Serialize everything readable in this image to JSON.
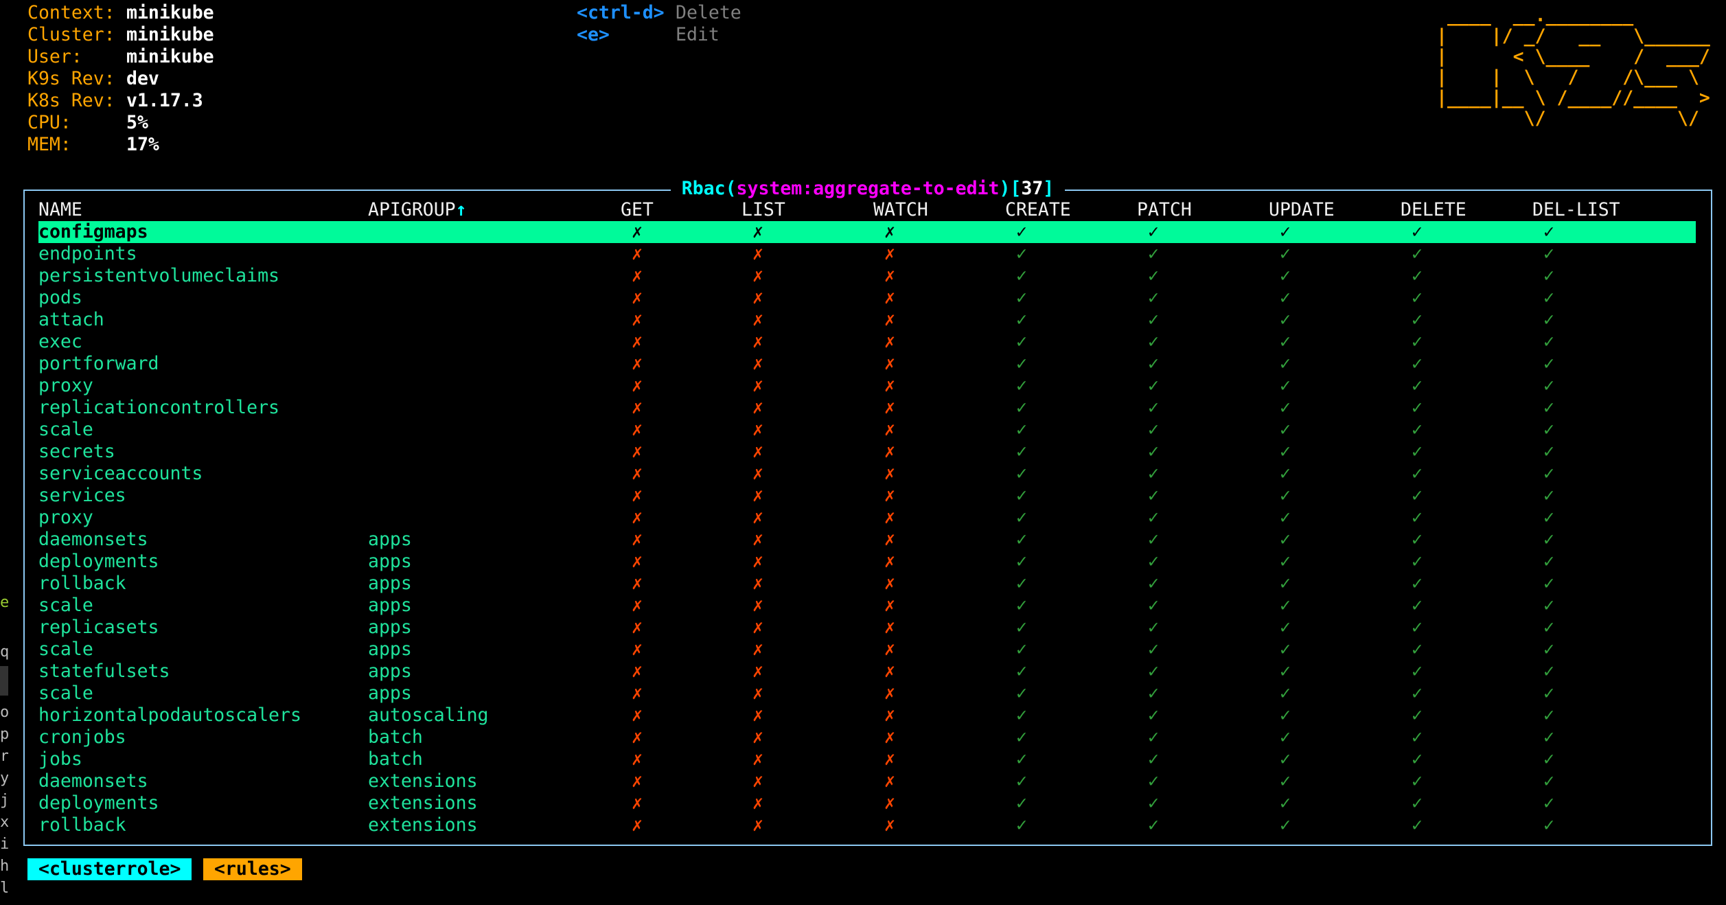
{
  "info": [
    {
      "label": "Context:",
      "value": "minikube"
    },
    {
      "label": "Cluster:",
      "value": "minikube"
    },
    {
      "label": "User:",
      "value": "minikube"
    },
    {
      "label": "K9s Rev:",
      "value": "dev"
    },
    {
      "label": "K8s Rev:",
      "value": "v1.17.3"
    },
    {
      "label": "CPU:",
      "value": "5%"
    },
    {
      "label": "MEM:",
      "value": "17%"
    }
  ],
  "menu": [
    {
      "key": "<ctrl-d>",
      "desc": "Delete"
    },
    {
      "key": "<e>",
      "desc": "Edit"
    }
  ],
  "logo": [
    " ____  __.________       ",
    "|    |/ _/   __   \\______",
    "|      < \\____    /  ___/",
    "|    |  \\   /    /\\___ \\ ",
    "|____|__ \\ /____//____  >",
    "        \\/            \\/ "
  ],
  "table": {
    "title": {
      "kind": "Rbac",
      "open": "(",
      "name": "system:aggregate-to-edit",
      "close": ")",
      "count_open": "[",
      "count": "37",
      "count_close": "]"
    },
    "columns": [
      "NAME",
      "APIGROUP↑",
      "GET",
      "LIST",
      "WATCH",
      "CREATE",
      "PATCH",
      "UPDATE",
      "DELETE",
      "DEL-LIST"
    ],
    "marks": {
      "deny": "✗",
      "allow": "✓"
    },
    "selected_index": 0,
    "rows": [
      {
        "name": "configmaps",
        "apigroup": "",
        "perms": [
          0,
          0,
          0,
          1,
          1,
          1,
          1,
          1
        ]
      },
      {
        "name": "endpoints",
        "apigroup": "",
        "perms": [
          0,
          0,
          0,
          1,
          1,
          1,
          1,
          1
        ]
      },
      {
        "name": "persistentvolumeclaims",
        "apigroup": "",
        "perms": [
          0,
          0,
          0,
          1,
          1,
          1,
          1,
          1
        ]
      },
      {
        "name": "pods",
        "apigroup": "",
        "perms": [
          0,
          0,
          0,
          1,
          1,
          1,
          1,
          1
        ]
      },
      {
        "name": "attach",
        "apigroup": "",
        "perms": [
          0,
          0,
          0,
          1,
          1,
          1,
          1,
          1
        ]
      },
      {
        "name": "exec",
        "apigroup": "",
        "perms": [
          0,
          0,
          0,
          1,
          1,
          1,
          1,
          1
        ]
      },
      {
        "name": "portforward",
        "apigroup": "",
        "perms": [
          0,
          0,
          0,
          1,
          1,
          1,
          1,
          1
        ]
      },
      {
        "name": "proxy",
        "apigroup": "",
        "perms": [
          0,
          0,
          0,
          1,
          1,
          1,
          1,
          1
        ]
      },
      {
        "name": "replicationcontrollers",
        "apigroup": "",
        "perms": [
          0,
          0,
          0,
          1,
          1,
          1,
          1,
          1
        ]
      },
      {
        "name": "scale",
        "apigroup": "",
        "perms": [
          0,
          0,
          0,
          1,
          1,
          1,
          1,
          1
        ]
      },
      {
        "name": "secrets",
        "apigroup": "",
        "perms": [
          0,
          0,
          0,
          1,
          1,
          1,
          1,
          1
        ]
      },
      {
        "name": "serviceaccounts",
        "apigroup": "",
        "perms": [
          0,
          0,
          0,
          1,
          1,
          1,
          1,
          1
        ]
      },
      {
        "name": "services",
        "apigroup": "",
        "perms": [
          0,
          0,
          0,
          1,
          1,
          1,
          1,
          1
        ]
      },
      {
        "name": "proxy",
        "apigroup": "",
        "perms": [
          0,
          0,
          0,
          1,
          1,
          1,
          1,
          1
        ]
      },
      {
        "name": "daemonsets",
        "apigroup": "apps",
        "perms": [
          0,
          0,
          0,
          1,
          1,
          1,
          1,
          1
        ]
      },
      {
        "name": "deployments",
        "apigroup": "apps",
        "perms": [
          0,
          0,
          0,
          1,
          1,
          1,
          1,
          1
        ]
      },
      {
        "name": "rollback",
        "apigroup": "apps",
        "perms": [
          0,
          0,
          0,
          1,
          1,
          1,
          1,
          1
        ]
      },
      {
        "name": "scale",
        "apigroup": "apps",
        "perms": [
          0,
          0,
          0,
          1,
          1,
          1,
          1,
          1
        ]
      },
      {
        "name": "replicasets",
        "apigroup": "apps",
        "perms": [
          0,
          0,
          0,
          1,
          1,
          1,
          1,
          1
        ]
      },
      {
        "name": "scale",
        "apigroup": "apps",
        "perms": [
          0,
          0,
          0,
          1,
          1,
          1,
          1,
          1
        ]
      },
      {
        "name": "statefulsets",
        "apigroup": "apps",
        "perms": [
          0,
          0,
          0,
          1,
          1,
          1,
          1,
          1
        ]
      },
      {
        "name": "scale",
        "apigroup": "apps",
        "perms": [
          0,
          0,
          0,
          1,
          1,
          1,
          1,
          1
        ]
      },
      {
        "name": "horizontalpodautoscalers",
        "apigroup": "autoscaling",
        "perms": [
          0,
          0,
          0,
          1,
          1,
          1,
          1,
          1
        ]
      },
      {
        "name": "cronjobs",
        "apigroup": "batch",
        "perms": [
          0,
          0,
          0,
          1,
          1,
          1,
          1,
          1
        ]
      },
      {
        "name": "jobs",
        "apigroup": "batch",
        "perms": [
          0,
          0,
          0,
          1,
          1,
          1,
          1,
          1
        ]
      },
      {
        "name": "daemonsets",
        "apigroup": "extensions",
        "perms": [
          0,
          0,
          0,
          1,
          1,
          1,
          1,
          1
        ]
      },
      {
        "name": "deployments",
        "apigroup": "extensions",
        "perms": [
          0,
          0,
          0,
          1,
          1,
          1,
          1,
          1
        ]
      },
      {
        "name": "rollback",
        "apigroup": "extensions",
        "perms": [
          0,
          0,
          0,
          1,
          1,
          1,
          1,
          1
        ]
      }
    ]
  },
  "crumbs": [
    {
      "label": "<clusterrole>",
      "color": "#00ffff"
    },
    {
      "label": "<rules>",
      "color": "#ffa500"
    }
  ],
  "edge_fragments": [
    "e",
    "q!",
    "o",
    "p",
    "r",
    "y",
    "j",
    "x",
    "i",
    "h",
    "l"
  ],
  "colors": {
    "accent_orange": "#ffa500",
    "name_green": "#1fe39c",
    "selected_bg": "#00fa9a",
    "deny": "#ff4500",
    "allow": "#32a03c",
    "border": "#8cc8f2",
    "key_blue": "#1e90ff"
  }
}
